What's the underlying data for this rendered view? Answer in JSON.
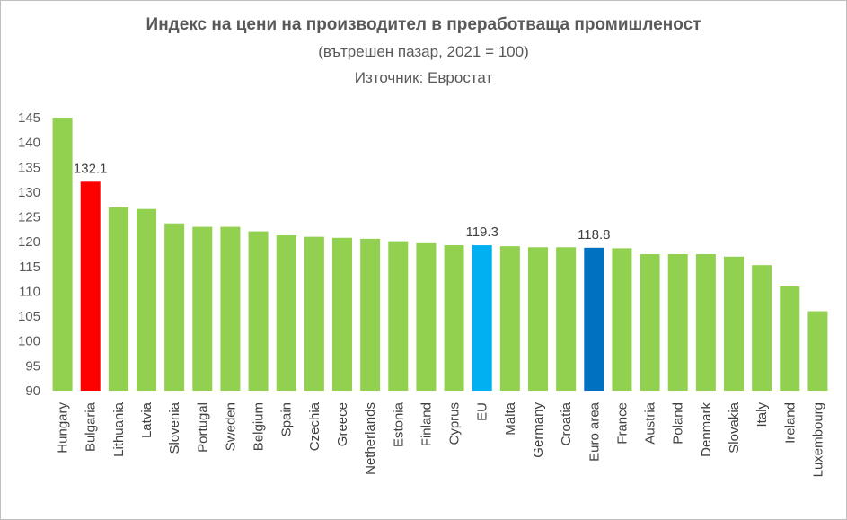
{
  "header": {
    "title": "Индекс на цени на производител в преработваща промишленост",
    "subtitle": "(вътрешен пазар, 2021 = 100)",
    "source": "Източник: Евростат"
  },
  "chart_data": {
    "type": "bar",
    "title": "Индекс на цени на производител в преработваща промишленост",
    "subtitle": "(вътрешен пазар, 2021 = 100)",
    "xlabel": "",
    "ylabel": "",
    "ylim": [
      90,
      145
    ],
    "yticks": [
      90,
      95,
      100,
      105,
      110,
      115,
      120,
      125,
      130,
      135,
      140,
      145
    ],
    "grid": false,
    "legend": "none",
    "categories": [
      "Hungary",
      "Bulgaria",
      "Lithuania",
      "Latvia",
      "Slovenia",
      "Portugal",
      "Sweden",
      "Belgium",
      "Spain",
      "Czechia",
      "Greece",
      "Netherlands",
      "Estonia",
      "Finland",
      "Cyprus",
      "EU",
      "Malta",
      "Germany",
      "Croatia",
      "Euro area",
      "France",
      "Austria",
      "Poland",
      "Denmark",
      "Slovakia",
      "Italy",
      "Ireland",
      "Luxembourg"
    ],
    "values": [
      145.0,
      132.1,
      126.9,
      126.6,
      123.7,
      123.0,
      123.0,
      122.1,
      121.3,
      121.0,
      120.8,
      120.6,
      120.1,
      119.7,
      119.3,
      119.3,
      119.1,
      118.9,
      118.9,
      118.8,
      118.7,
      117.5,
      117.5,
      117.5,
      117.0,
      115.3,
      111.0,
      106.0
    ],
    "colors": [
      "#92d050",
      "#ff0000",
      "#92d050",
      "#92d050",
      "#92d050",
      "#92d050",
      "#92d050",
      "#92d050",
      "#92d050",
      "#92d050",
      "#92d050",
      "#92d050",
      "#92d050",
      "#92d050",
      "#92d050",
      "#00b0f0",
      "#92d050",
      "#92d050",
      "#92d050",
      "#0070c0",
      "#92d050",
      "#92d050",
      "#92d050",
      "#92d050",
      "#92d050",
      "#92d050",
      "#92d050",
      "#92d050"
    ],
    "data_labels": [
      {
        "category": "Bulgaria",
        "text": "132.1"
      },
      {
        "category": "EU",
        "text": "119.3"
      },
      {
        "category": "Euro area",
        "text": "118.8"
      }
    ]
  }
}
